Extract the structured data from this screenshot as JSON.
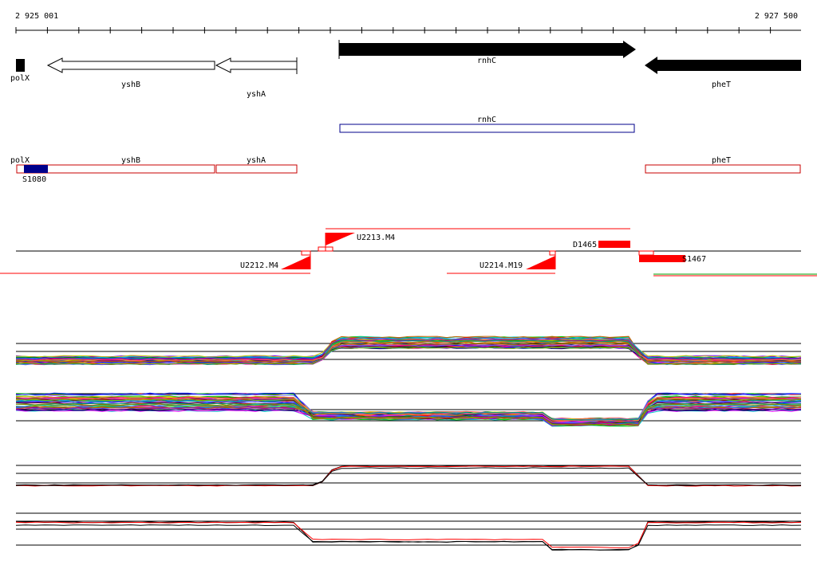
{
  "coords": {
    "start": "2 925 001",
    "end": "2 927 500"
  },
  "genes": [
    {
      "name": "polX"
    },
    {
      "name": "yshB"
    },
    {
      "name": "yshA"
    },
    {
      "name": "rnhC"
    },
    {
      "name": "pheT"
    }
  ],
  "transcript": {
    "name": "rnhC"
  },
  "annotated_genes": [
    {
      "name": "polX"
    },
    {
      "name": "yshB"
    },
    {
      "name": "yshA"
    },
    {
      "name": "pheT"
    }
  ],
  "regulatory_site": {
    "name": "S1080"
  },
  "terminators_up": [
    {
      "name": "U2213.M4"
    },
    {
      "name": "D1465"
    }
  ],
  "terminators_down": [
    {
      "name": "U2212.M4"
    },
    {
      "name": "U2214.M19"
    },
    {
      "name": "S1467"
    }
  ],
  "colors": {
    "gene_fill": "#000000",
    "transcript_outline": "#00008b",
    "annotation_outline": "#c80000",
    "site_fill": "#00008b",
    "terminator": "#ff0000",
    "mean_profile": "#000000",
    "alt_profile": "#ff0000"
  }
}
